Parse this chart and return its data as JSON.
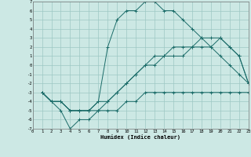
{
  "xlabel": "Humidex (Indice chaleur)",
  "bg_color": "#cce8e4",
  "grid_color": "#9dc8c4",
  "line_color": "#1a6b68",
  "xlim": [
    0,
    23
  ],
  "ylim": [
    -7,
    7
  ],
  "xticks": [
    0,
    1,
    2,
    3,
    4,
    5,
    6,
    7,
    8,
    9,
    10,
    11,
    12,
    13,
    14,
    15,
    16,
    17,
    18,
    19,
    20,
    21,
    22,
    23
  ],
  "yticks": [
    -7,
    -6,
    -5,
    -4,
    -3,
    -2,
    -1,
    0,
    1,
    2,
    3,
    4,
    5,
    6,
    7
  ],
  "curves": [
    {
      "x": [
        1,
        2,
        3,
        4,
        5,
        6,
        7,
        8,
        9,
        10,
        11,
        12,
        13,
        14,
        15,
        16,
        17,
        18,
        19,
        20,
        21,
        22,
        23
      ],
      "y": [
        -3,
        -4,
        -4,
        -5,
        -5,
        -5,
        -4,
        2,
        5,
        6,
        6,
        7,
        7,
        6,
        6,
        5,
        4,
        3,
        2,
        1,
        0,
        -1,
        -2
      ]
    },
    {
      "x": [
        1,
        2,
        3,
        4,
        5,
        6,
        7,
        8,
        9,
        10,
        11,
        12,
        13,
        14,
        15,
        16,
        17,
        18,
        19,
        20,
        21,
        22,
        23
      ],
      "y": [
        -3,
        -4,
        -5,
        -7,
        -6,
        -6,
        -5,
        -5,
        -5,
        -4,
        -4,
        -3,
        -3,
        -3,
        -3,
        -3,
        -3,
        -3,
        -3,
        -3,
        -3,
        -3,
        -3
      ]
    },
    {
      "x": [
        1,
        2,
        3,
        4,
        5,
        6,
        7,
        8,
        9,
        10,
        11,
        12,
        13,
        14,
        15,
        16,
        17,
        18,
        19,
        20,
        21,
        22,
        23
      ],
      "y": [
        -3,
        -4,
        -4,
        -5,
        -5,
        -5,
        -5,
        -4,
        -3,
        -2,
        -1,
        0,
        0,
        1,
        1,
        1,
        2,
        2,
        2,
        3,
        2,
        1,
        -2
      ]
    },
    {
      "x": [
        1,
        2,
        3,
        4,
        5,
        6,
        7,
        8,
        9,
        10,
        11,
        12,
        13,
        14,
        15,
        16,
        17,
        18,
        19,
        20,
        21,
        22,
        23
      ],
      "y": [
        -3,
        -4,
        -4,
        -5,
        -5,
        -5,
        -4,
        -4,
        -3,
        -2,
        -1,
        0,
        1,
        1,
        2,
        2,
        2,
        3,
        3,
        3,
        2,
        1,
        -2
      ]
    }
  ]
}
